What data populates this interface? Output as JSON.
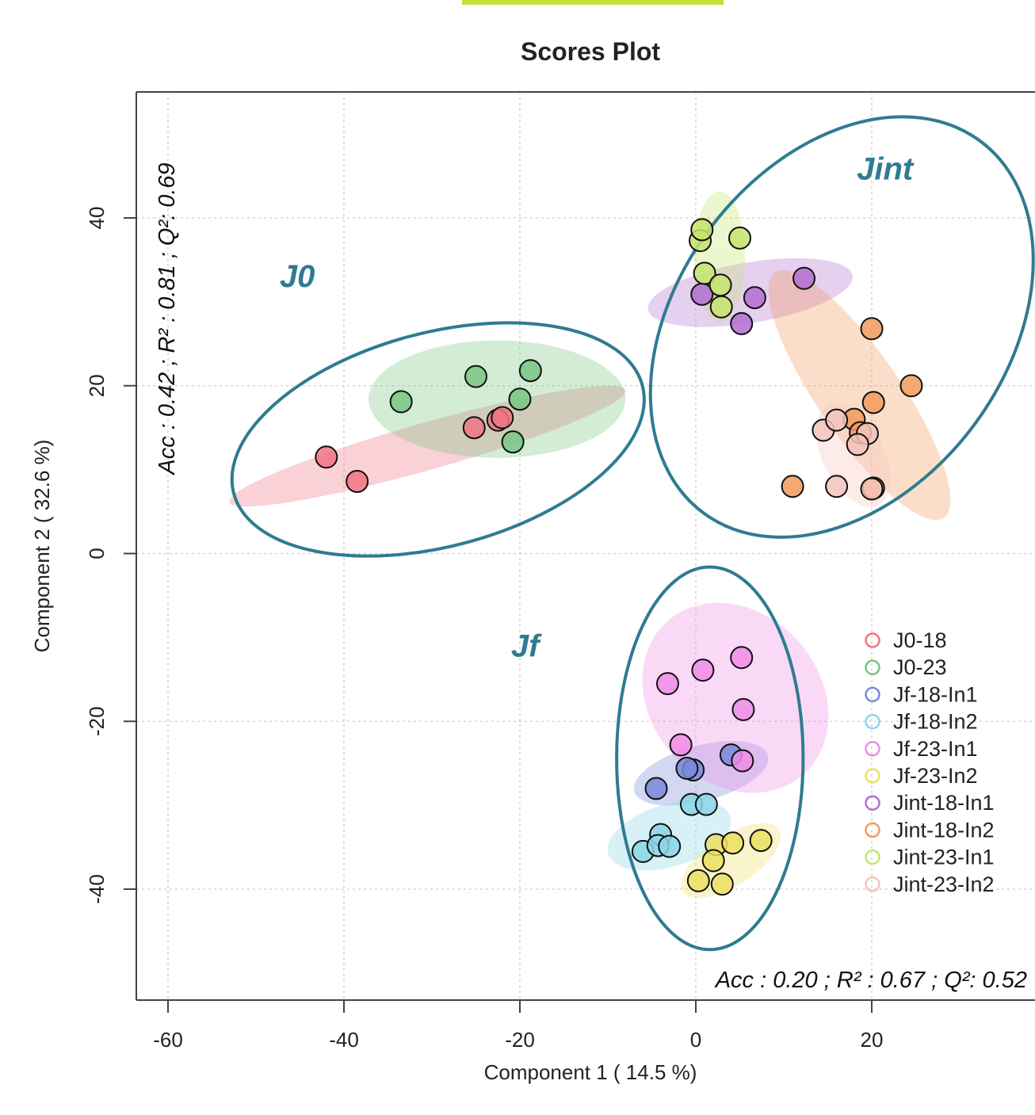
{
  "chart_data": {
    "type": "scatter",
    "title": "Scores Plot",
    "xlabel": "Component 1 ( 14.5 %)",
    "ylabel": "Component 2 ( 32.6 %)",
    "xlim": [
      -64,
      38
    ],
    "ylim": [
      -52,
      55
    ],
    "xticks": [
      "-60",
      "-40",
      "-20",
      "0",
      "20"
    ],
    "xtick_values": [
      -60,
      -40,
      -20,
      0,
      20
    ],
    "yticks": [
      "-40",
      "-20",
      "0",
      "20",
      "40"
    ],
    "ytick_values": [
      -40,
      -20,
      0,
      20,
      40
    ],
    "grid": true,
    "legend_position": "bottom-right",
    "accent_color": "#c8dc3c",
    "group_color": "#2f7b91",
    "series": [
      {
        "name": "J0-18",
        "color": "#f07482",
        "points": [
          [
            -42,
            11.5
          ],
          [
            -38.5,
            8.6
          ],
          [
            -25.2,
            15
          ],
          [
            -22.5,
            15.9
          ],
          [
            -22,
            16.2
          ]
        ]
      },
      {
        "name": "J0-23",
        "color": "#79c584",
        "points": [
          [
            -33.5,
            18.1
          ],
          [
            -25,
            21.1
          ],
          [
            -18.8,
            21.8
          ],
          [
            -20,
            18.4
          ],
          [
            -20.8,
            13.3
          ]
        ]
      },
      {
        "name": "Jf-18-In1",
        "color": "#7788d9",
        "points": [
          [
            4,
            -24
          ],
          [
            -0.3,
            -25.8
          ],
          [
            -1,
            -25.6
          ],
          [
            -4.5,
            -28
          ]
        ]
      },
      {
        "name": "Jf-18-In2",
        "color": "#8ad6e6",
        "points": [
          [
            -4,
            -33.5
          ],
          [
            -6,
            -35.5
          ],
          [
            -4.3,
            -34.8
          ],
          [
            -3,
            -34.9
          ],
          [
            -0.5,
            -29.9
          ],
          [
            1.2,
            -29.9
          ]
        ]
      },
      {
        "name": "Jf-23-In1",
        "color": "#ef8ce8",
        "points": [
          [
            -3.2,
            -15.5
          ],
          [
            0.8,
            -13.9
          ],
          [
            5.2,
            -12.4
          ],
          [
            5.4,
            -18.6
          ],
          [
            -1.7,
            -22.8
          ],
          [
            5.3,
            -24.7
          ]
        ]
      },
      {
        "name": "Jf-23-In2",
        "color": "#ecdf62",
        "points": [
          [
            2.3,
            -34.7
          ],
          [
            4.2,
            -34.5
          ],
          [
            7.4,
            -34.2
          ],
          [
            2,
            -36.6
          ],
          [
            0.3,
            -39
          ],
          [
            3,
            -39.4
          ]
        ]
      },
      {
        "name": "Jint-18-In1",
        "color": "#b26fd0",
        "points": [
          [
            12.3,
            32.8
          ],
          [
            6.7,
            30.5
          ],
          [
            0.7,
            30.9
          ],
          [
            5.2,
            27.4
          ]
        ]
      },
      {
        "name": "Jint-18-In2",
        "color": "#f29a5c",
        "points": [
          [
            20,
            26.8
          ],
          [
            24.5,
            20
          ],
          [
            20.2,
            18
          ],
          [
            18,
            16
          ],
          [
            18.7,
            14.4
          ],
          [
            11,
            8
          ],
          [
            20.2,
            7.8
          ]
        ]
      },
      {
        "name": "Jint-23-In1",
        "color": "#c5e46d",
        "points": [
          [
            0.5,
            37.3
          ],
          [
            0.7,
            38.6
          ],
          [
            5,
            37.6
          ],
          [
            1,
            33.4
          ],
          [
            2.8,
            32
          ],
          [
            2.9,
            29.4
          ]
        ]
      },
      {
        "name": "Jint-23-In2",
        "color": "#f5c3bc",
        "points": [
          [
            14.5,
            14.7
          ],
          [
            16,
            15.9
          ],
          [
            19.5,
            14.3
          ],
          [
            18.4,
            13
          ],
          [
            16,
            8
          ],
          [
            20,
            7.7
          ]
        ]
      }
    ],
    "confidence_ellipses": [
      {
        "series": "J0-18",
        "cx": -30.5,
        "cy": 12.8,
        "angle": 16.5,
        "rx": 23.5,
        "ry": 2.8
      },
      {
        "series": "J0-23",
        "cx": -22.6,
        "cy": 18.4,
        "angle": 0,
        "rx": 14.6,
        "ry": 7
      },
      {
        "series": "Jf-18-In1",
        "cx": 0.6,
        "cy": -26.2,
        "angle": 16,
        "rx": 7.9,
        "ry": 3.3
      },
      {
        "series": "Jf-18-In2",
        "cx": -3,
        "cy": -33.6,
        "angle": 18,
        "rx": 7.3,
        "ry": 3.7
      },
      {
        "series": "Jf-23-In1",
        "cx": 4.5,
        "cy": -17.2,
        "angle": -55,
        "rx": 12,
        "ry": 9.8
      },
      {
        "series": "Jf-23-In2",
        "cx": 4,
        "cy": -36.6,
        "angle": 35,
        "rx": 6.6,
        "ry": 2.9
      },
      {
        "series": "Jint-18-In1",
        "cx": 6.2,
        "cy": 31.1,
        "angle": 10,
        "rx": 11.8,
        "ry": 3.6
      },
      {
        "series": "Jint-18-In2",
        "cx": 18.6,
        "cy": 18.9,
        "angle": -57,
        "rx": 17.5,
        "ry": 4.8
      },
      {
        "series": "Jint-23-In1",
        "cx": 2.7,
        "cy": 35.4,
        "angle": 90,
        "rx": 7.8,
        "ry": 2.9
      },
      {
        "series": "Jint-23-In2",
        "cx": 17.9,
        "cy": 11.7,
        "angle": -65,
        "rx": 6.6,
        "ry": 3.5
      }
    ],
    "groups": [
      {
        "label": "J0",
        "cx": -29.3,
        "cy": 13.6,
        "rx": 24.1,
        "ry": 12.7,
        "angle": 16,
        "label_x": -45.3,
        "label_y": 31.8
      },
      {
        "label": "Jint",
        "cx": 16.6,
        "cy": 27,
        "rx": 19,
        "ry": 27.2,
        "angle": -33,
        "label_x": 21.5,
        "label_y": 44.6
      },
      {
        "label": "Jf",
        "cx": 1.6,
        "cy": -24.4,
        "rx": 10.6,
        "ry": 22.8,
        "angle": 0,
        "label_x": -19.4,
        "label_y": -12.3
      }
    ],
    "annotations": [
      {
        "text": "Acc : 0.42 ; R² : 0.81 ; Q²: 0.69",
        "orientation": "vertical"
      },
      {
        "text": "Acc : 0.20 ; R² : 0.67 ; Q²: 0.52",
        "orientation": "horizontal"
      }
    ]
  }
}
